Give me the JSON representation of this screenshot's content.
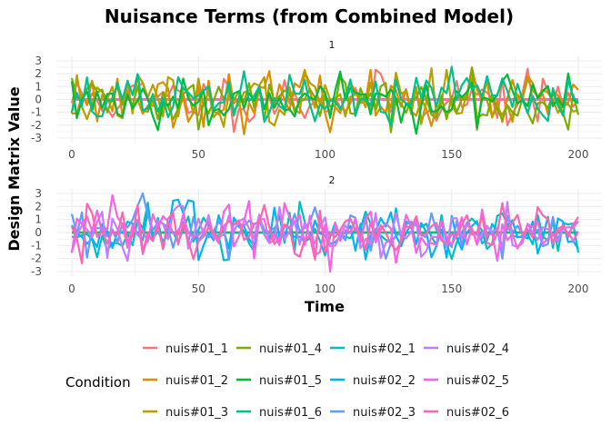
{
  "chart_data": {
    "type": "line",
    "title": "Nuisance Terms (from Combined Model)",
    "xlabel": "Time",
    "ylabel": "Design Matrix Value",
    "xlim": [
      0,
      200
    ],
    "ylim": [
      -3,
      3
    ],
    "x_ticks": [
      "0",
      "50",
      "100",
      "150",
      "200"
    ],
    "y_ticks": [
      "3",
      "2",
      "1",
      "0",
      "-1",
      "-2",
      "-3"
    ],
    "grid": true,
    "facets": [
      {
        "label": "1",
        "active_series": [
          "nuis#01_1",
          "nuis#01_2",
          "nuis#01_3",
          "nuis#01_4",
          "nuis#01_5",
          "nuis#01_6"
        ]
      },
      {
        "label": "2",
        "active_series": [
          "nuis#02_1",
          "nuis#02_2",
          "nuis#02_3",
          "nuis#02_4",
          "nuis#02_5",
          "nuis#02_6"
        ]
      }
    ],
    "inactive_value": 0,
    "x_step": 2,
    "legend": {
      "title": "Condition",
      "position": "bottom",
      "columns": [
        [
          "nuis#01_1",
          "nuis#01_2",
          "nuis#01_3"
        ],
        [
          "nuis#01_4",
          "nuis#01_5",
          "nuis#01_6"
        ],
        [
          "nuis#02_1",
          "nuis#02_2",
          "nuis#02_3"
        ],
        [
          "nuis#02_4",
          "nuis#02_5",
          "nuis#02_6"
        ]
      ]
    },
    "series": [
      {
        "name": "nuis#01_1",
        "color": "#F8766D",
        "seed": 11
      },
      {
        "name": "nuis#01_2",
        "color": "#DE8C00",
        "seed": 23
      },
      {
        "name": "nuis#01_3",
        "color": "#B79F00",
        "seed": 37
      },
      {
        "name": "nuis#01_4",
        "color": "#7CAE00",
        "seed": 41
      },
      {
        "name": "nuis#01_5",
        "color": "#00BA38",
        "seed": 53
      },
      {
        "name": "nuis#01_6",
        "color": "#00C08B",
        "seed": 67
      },
      {
        "name": "nuis#02_1",
        "color": "#00BFC4",
        "seed": 71
      },
      {
        "name": "nuis#02_2",
        "color": "#00B4F0",
        "seed": 83
      },
      {
        "name": "nuis#02_3",
        "color": "#619CFF",
        "seed": 97
      },
      {
        "name": "nuis#02_4",
        "color": "#C77CFF",
        "seed": 101
      },
      {
        "name": "nuis#02_5",
        "color": "#F564E3",
        "seed": 113
      },
      {
        "name": "nuis#02_6",
        "color": "#FF64B0",
        "seed": 127
      }
    ],
    "value_note": "Series are approximately standard-normal noise clipped to [-3, 3]; values regenerated from seed, each series centered at 0 with sd ~1"
  }
}
